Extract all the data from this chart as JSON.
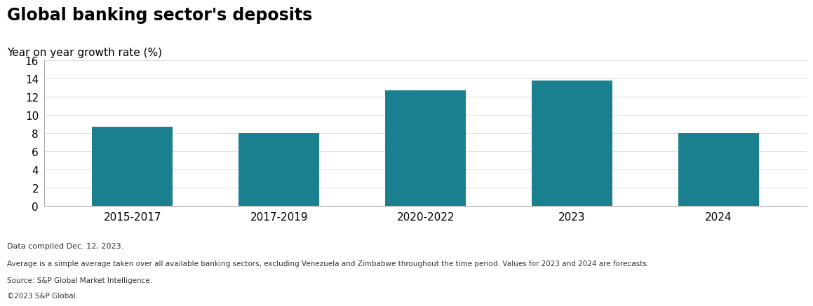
{
  "title": "Global banking sector's deposits",
  "subtitle": "Year on year growth rate (%)",
  "categories": [
    "2015-2017",
    "2017-2019",
    "2020-2022",
    "2023",
    "2024"
  ],
  "values": [
    8.7,
    8.0,
    12.7,
    13.8,
    8.0
  ],
  "bar_color": "#1a7f8e",
  "ylim": [
    0,
    16
  ],
  "yticks": [
    0,
    2,
    4,
    6,
    8,
    10,
    12,
    14,
    16
  ],
  "title_fontsize": 17,
  "subtitle_fontsize": 11,
  "tick_fontsize": 11,
  "footnotes": [
    "Data compiled Dec. 12, 2023.",
    "Average is a simple average taken over all available banking sectors, excluding Venezuela and Zimbabwe throughout the time period. Values for 2023 and 2024 are forecasts.",
    "Source: S&P Global Market Intelligence.",
    "©2023 S&P Global."
  ],
  "footnote_color": "#333333",
  "background_color": "#ffffff",
  "bar_width": 0.55,
  "spine_color": "#aaaaaa",
  "grid_color": "#dddddd"
}
